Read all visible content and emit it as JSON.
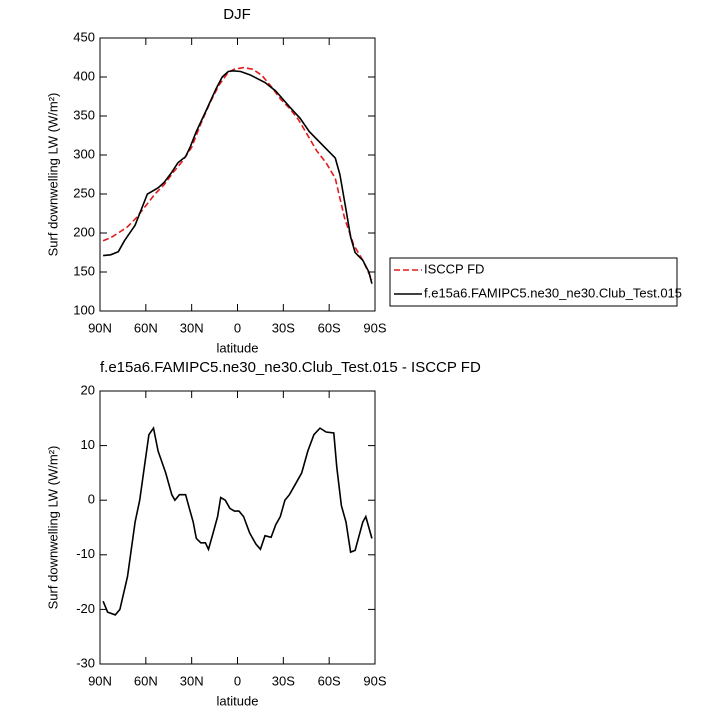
{
  "chart_data": [
    {
      "type": "line",
      "title": "DJF",
      "xlabel": "latitude",
      "ylabel": "Surf downwelling LW (W/m²)",
      "xlim": [
        90,
        -90
      ],
      "xticks": [
        {
          "value": 90,
          "label": "90N"
        },
        {
          "value": 60,
          "label": "60N"
        },
        {
          "value": 30,
          "label": "30N"
        },
        0,
        {
          "value": -30,
          "label": "30S"
        },
        {
          "value": -60,
          "label": "60S"
        },
        {
          "value": -90,
          "label": "90S"
        }
      ],
      "ylim": [
        100,
        450
      ],
      "yticks": [
        100,
        150,
        200,
        250,
        300,
        350,
        400,
        450
      ],
      "legend": "outside right",
      "series": [
        {
          "name": "ISCCP FD",
          "color": "#e41a1c",
          "dashed": true,
          "x": [
            88,
            83,
            78,
            72,
            66,
            60,
            54,
            48,
            42,
            36,
            30,
            24,
            18,
            12,
            6,
            2,
            -4,
            -10,
            -16,
            -22,
            -28,
            -34,
            -40,
            -46,
            -52,
            -58,
            -64,
            -70,
            -76,
            -82,
            -88
          ],
          "values": [
            190,
            194,
            200,
            208,
            220,
            235,
            250,
            262,
            278,
            292,
            310,
            340,
            367,
            390,
            406,
            410,
            412,
            410,
            402,
            388,
            372,
            360,
            345,
            325,
            305,
            290,
            270,
            220,
            185,
            165,
            140
          ]
        },
        {
          "name": "f.e15a6.FAMIPC5.ne30_ne30.Club_Test.015",
          "color": "#000000",
          "dashed": false,
          "x": [
            88,
            83,
            78,
            74,
            67,
            59,
            52,
            48,
            43,
            39,
            34,
            31,
            27,
            21,
            14,
            10,
            6,
            3,
            -2,
            -8,
            -18,
            -25,
            -34,
            -41,
            -47,
            -57,
            -64,
            -67,
            -71,
            -74,
            -77,
            -82,
            -86,
            -88
          ],
          "values": [
            171,
            172,
            176,
            190,
            210,
            250,
            258,
            265,
            278,
            290,
            298,
            310,
            330,
            355,
            385,
            400,
            407,
            408,
            407,
            403,
            393,
            382,
            362,
            347,
            330,
            310,
            296,
            275,
            230,
            195,
            175,
            165,
            150,
            135
          ]
        }
      ]
    },
    {
      "type": "line",
      "title": "f.e15a6.FAMIPC5.ne30_ne30.Club_Test.015 - ISCCP FD",
      "xlabel": "latitude",
      "ylabel": "Surf downwelling LW (W/m²)",
      "xlim": [
        90,
        -90
      ],
      "xticks": [
        {
          "value": 90,
          "label": "90N"
        },
        {
          "value": 60,
          "label": "60N"
        },
        {
          "value": 30,
          "label": "30N"
        },
        0,
        {
          "value": -30,
          "label": "30S"
        },
        {
          "value": -60,
          "label": "60S"
        },
        {
          "value": -90,
          "label": "90S"
        }
      ],
      "ylim": [
        -30,
        20
      ],
      "yticks": [
        -30,
        -20,
        -10,
        0,
        10,
        20
      ],
      "series": [
        {
          "color": "#000000",
          "dashed": false,
          "x": [
            88,
            85,
            80,
            77,
            72,
            67,
            64,
            61,
            58,
            55,
            52,
            47,
            43,
            41,
            38,
            34,
            31,
            29,
            27,
            24,
            21,
            19,
            16,
            13,
            11,
            8,
            5,
            2,
            -1,
            -4,
            -8,
            -12,
            -15,
            -18,
            -22,
            -25,
            -28,
            -31,
            -34,
            -38,
            -42,
            -46,
            -50,
            -54,
            -58,
            -63,
            -65,
            -68,
            -71,
            -74,
            -77,
            -82,
            -84,
            -88
          ],
          "values": [
            -18.5,
            -20.5,
            -21,
            -20,
            -14,
            -4,
            0,
            6,
            12,
            13.2,
            9,
            5,
            1,
            0,
            1,
            1,
            -2,
            -4,
            -7,
            -7.8,
            -7.8,
            -9,
            -6,
            -3,
            0.5,
            0,
            -1.5,
            -2,
            -2,
            -3,
            -6,
            -8,
            -9,
            -6.5,
            -6.8,
            -4.5,
            -3,
            0,
            1,
            3,
            5,
            9,
            12,
            13.2,
            12.5,
            12.3,
            6,
            -1,
            -4,
            -9.5,
            -9.2,
            -4,
            -3,
            -7
          ]
        }
      ]
    }
  ]
}
